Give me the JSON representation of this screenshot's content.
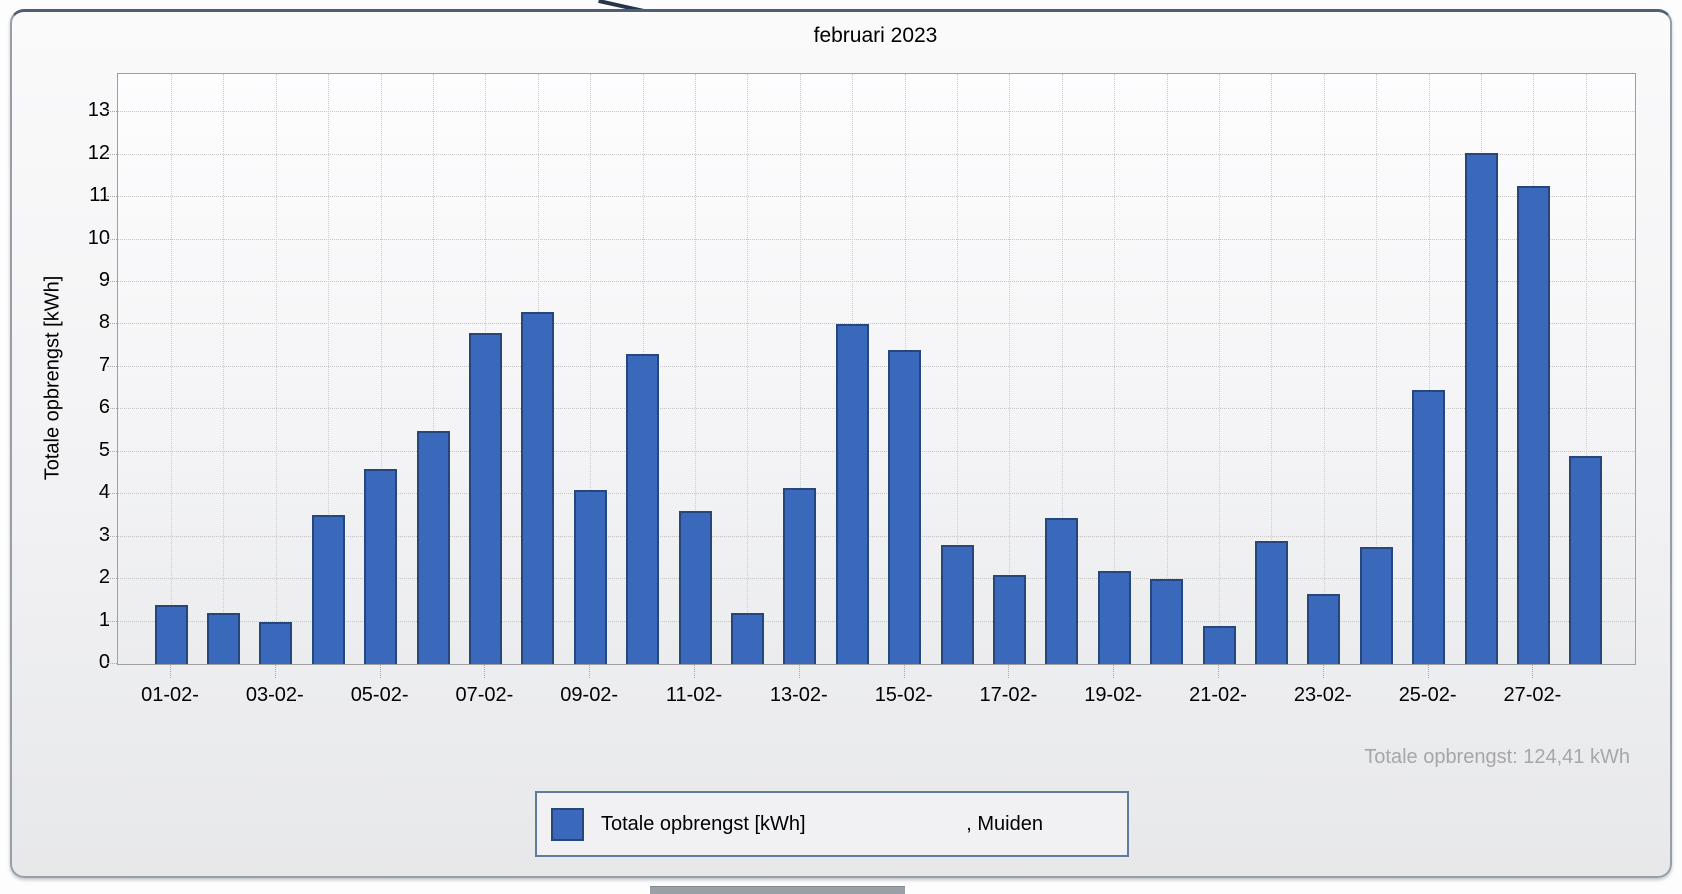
{
  "window": {
    "title": "februari 2023"
  },
  "chart_data": {
    "type": "bar",
    "title": "februari 2023",
    "xlabel": "",
    "ylabel": "Totale opbrengst [kWh]",
    "ylim": [
      0,
      13.9
    ],
    "yticks": [
      0,
      1,
      2,
      3,
      4,
      5,
      6,
      7,
      8,
      9,
      10,
      11,
      12,
      13
    ],
    "grid": "dotted",
    "legend_position": "bottom-center",
    "n_bars": 28,
    "values": [
      1.4,
      1.2,
      1.0,
      3.5,
      4.6,
      5.5,
      7.8,
      8.3,
      4.1,
      7.3,
      3.6,
      1.2,
      4.15,
      8.0,
      7.4,
      2.8,
      2.1,
      3.45,
      2.2,
      2.0,
      0.9,
      2.9,
      1.65,
      2.75,
      6.45,
      12.05,
      11.25,
      4.9
    ],
    "x_tick_labels": [
      "01-02-",
      "03-02-",
      "05-02-",
      "07-02-",
      "09-02-",
      "11-02-",
      "13-02-",
      "15-02-",
      "17-02-",
      "19-02-",
      "21-02-",
      "23-02-",
      "25-02-",
      "27-02-"
    ],
    "x_tick_positions": [
      1,
      3,
      5,
      7,
      9,
      11,
      13,
      15,
      17,
      19,
      21,
      23,
      25,
      27
    ],
    "bar_color": "#3a68ba",
    "bar_border_color": "#26477d",
    "total_annotation": "Totale opbrengst: 124,41 kWh",
    "legend": {
      "series_label": "Totale opbrengst [kWh]",
      "location_label": ", Muiden"
    }
  },
  "colors": {
    "total_text": "#a7a7a7",
    "legend_border": "#5f7ca0",
    "accent_blue": "#3a68ba"
  }
}
